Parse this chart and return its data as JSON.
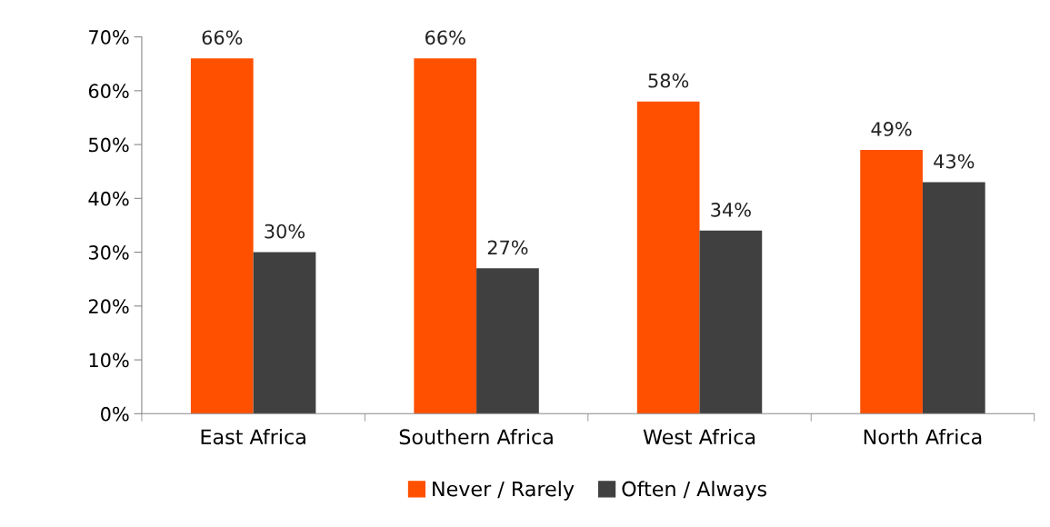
{
  "chart_data": {
    "type": "bar",
    "categories": [
      "East Africa",
      "Southern Africa",
      "West Africa",
      "North Africa"
    ],
    "series": [
      {
        "name": "Never / Rarely",
        "color": "#ff5000",
        "values": [
          66,
          66,
          58,
          49
        ],
        "value_labels": [
          "66%",
          "66%",
          "58%",
          "49%"
        ]
      },
      {
        "name": "Often / Always",
        "color": "#404040",
        "values": [
          30,
          27,
          34,
          43
        ],
        "value_labels": [
          "30%",
          "27%",
          "34%",
          "43%"
        ]
      }
    ],
    "ylim": [
      0,
      70
    ],
    "yticks": [
      {
        "value": 0,
        "label": "0%"
      },
      {
        "value": 10,
        "label": "10%"
      },
      {
        "value": 20,
        "label": "20%"
      },
      {
        "value": 30,
        "label": "30%"
      },
      {
        "value": 40,
        "label": "40%"
      },
      {
        "value": 50,
        "label": "50%"
      },
      {
        "value": 60,
        "label": "60%"
      },
      {
        "value": 70,
        "label": "70%"
      }
    ],
    "grid": false,
    "legend": "bottom"
  }
}
